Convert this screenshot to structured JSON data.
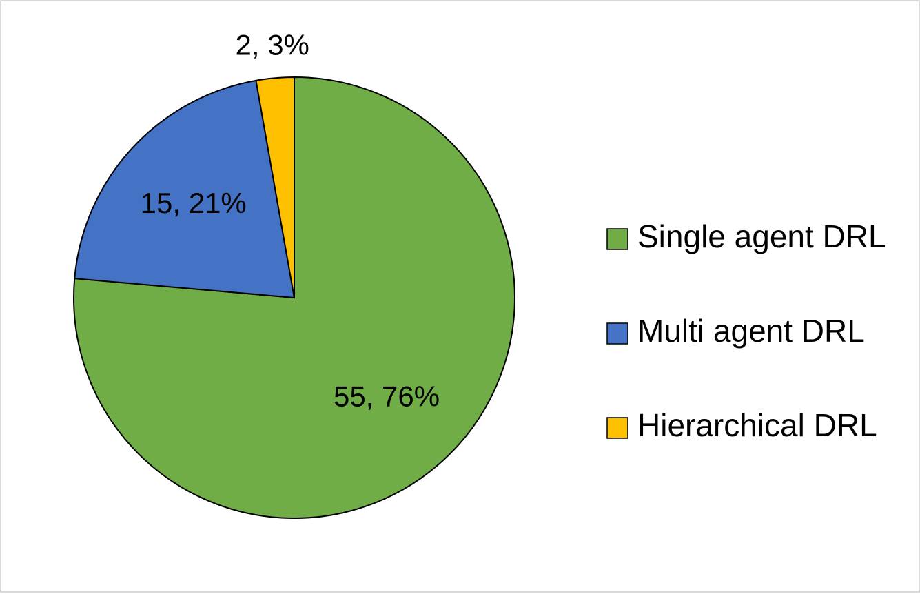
{
  "chart_data": {
    "type": "pie",
    "title": "",
    "categories": [
      "Single agent DRL",
      "Multi agent DRL",
      "Hierarchical DRL"
    ],
    "values": [
      55,
      15,
      2
    ],
    "percent_labels": [
      "55, 76%",
      "15, 21%",
      "2, 3%"
    ],
    "colors": [
      "#70ad47",
      "#4472c4",
      "#ffc000"
    ],
    "start_angle_deg": 0,
    "direction": "clockwise",
    "legend_position": "right",
    "data_labels": "value, percent"
  }
}
